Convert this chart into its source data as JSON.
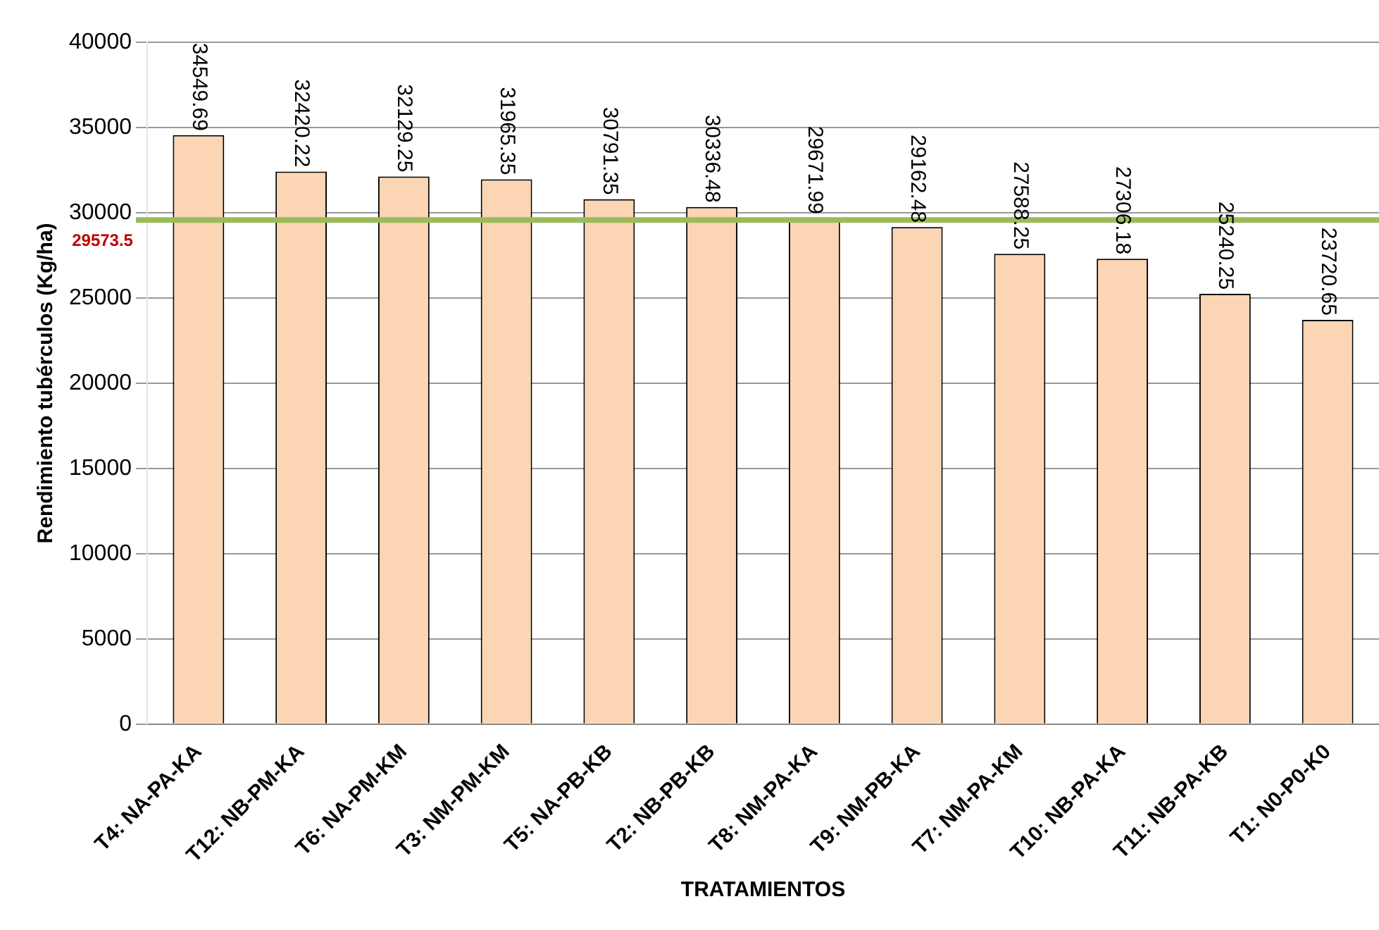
{
  "chart_data": {
    "type": "bar",
    "xlabel": "TRATAMIENTOS",
    "ylabel": "Rendimiento tubérculos (Kg/ha)",
    "categories": [
      "T4: NA-PA-KA",
      "T12: NB-PM-KA",
      "T6: NA-PM-KM",
      "T3: NM-PM-KM",
      "T5: NA-PB-KB",
      "T2: NB-PB-KB",
      "T8: NM-PA-KA",
      "T9: NM-PB-KA",
      "T7: NM-PA-KM",
      "T10: NB-PA-KA",
      "T11: NB-PA-KB",
      "T1: N0-P0-K0"
    ],
    "values": [
      34549.69,
      32420.22,
      32129.25,
      31965.35,
      30791.35,
      30336.48,
      29671.99,
      29162.48,
      27588.25,
      27306.18,
      25240.25,
      23720.65
    ],
    "color": "#fcd5b4",
    "ylim": [
      0,
      40000
    ],
    "yticks": [
      0,
      5000,
      10000,
      15000,
      20000,
      25000,
      30000,
      35000,
      40000
    ],
    "grid": "y",
    "data_labels": true,
    "legend": false,
    "ref_lines": [
      {
        "axis": "y",
        "value": 29573.5,
        "label": "29573.5",
        "color": "#9bbb59"
      }
    ]
  }
}
